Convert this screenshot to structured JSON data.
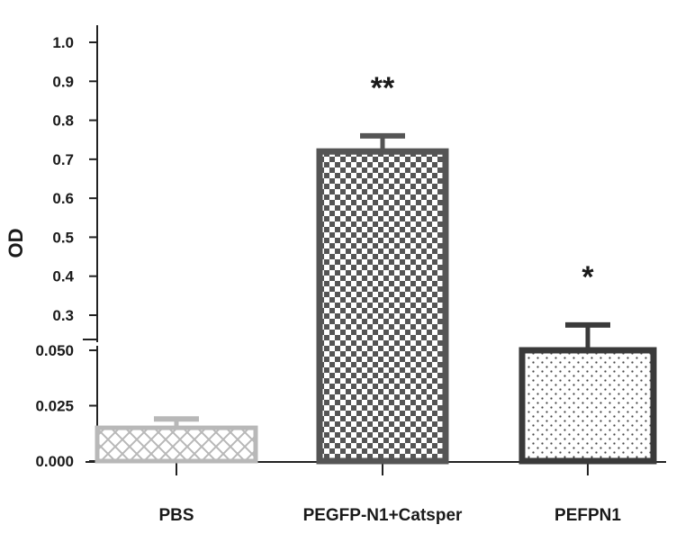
{
  "chart_data": {
    "type": "bar",
    "ylabel": "OD",
    "xlabel": "",
    "title": "",
    "axis_break": true,
    "y_upper_segment": {
      "ylim": [
        0.27,
        1.0
      ],
      "ticks": [
        "1.0",
        "0.9",
        "0.8",
        "0.7",
        "0.6",
        "0.5",
        "0.4",
        "0.3"
      ]
    },
    "y_lower_segment": {
      "ylim": [
        0.0,
        0.05
      ],
      "ticks": [
        "0.050",
        "0.025",
        "0.000"
      ]
    },
    "categories": [
      "PBS",
      "PEGFP-N1+Catsper",
      "PEFPN1"
    ],
    "values": [
      0.015,
      0.72,
      0.265
    ],
    "errors": [
      0.004,
      0.04,
      0.01
    ],
    "significance": [
      "",
      "**",
      "*"
    ],
    "colors": {
      "PBS": "#b8b8b8",
      "PEGFP-N1+Catsper": "#555555",
      "PEFPN1": "#3a3a3a"
    },
    "grid": false
  }
}
